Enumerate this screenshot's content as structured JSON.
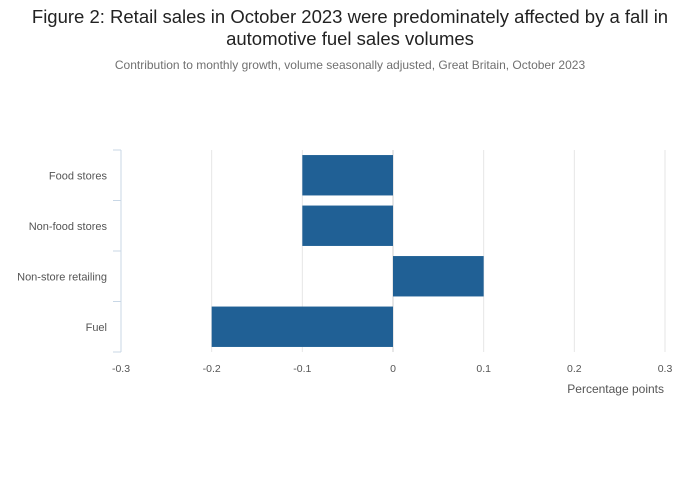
{
  "chart_data": {
    "type": "bar",
    "orientation": "horizontal",
    "title": "Figure 2: Retail sales in October 2023 were predominately affected by a fall in automotive fuel sales volumes",
    "subtitle": "Contribution to monthly growth, volume seasonally adjusted, Great Britain, October 2023",
    "categories": [
      "Food stores",
      "Non-food stores",
      "Non-store retailing",
      "Fuel"
    ],
    "values": [
      -0.1,
      -0.1,
      0.1,
      -0.2
    ],
    "xlabel": "Percentage points",
    "ylabel": "",
    "xlim": [
      -0.3,
      0.3
    ],
    "xticks": [
      "-0.3",
      "-0.2",
      "-0.1",
      "0",
      "0.1",
      "0.2",
      "0.3"
    ],
    "grid": true,
    "legend": "none",
    "bar_color": "#206095",
    "grid_color": "#e6e6e6",
    "axis_color": "#c8d7e6"
  }
}
